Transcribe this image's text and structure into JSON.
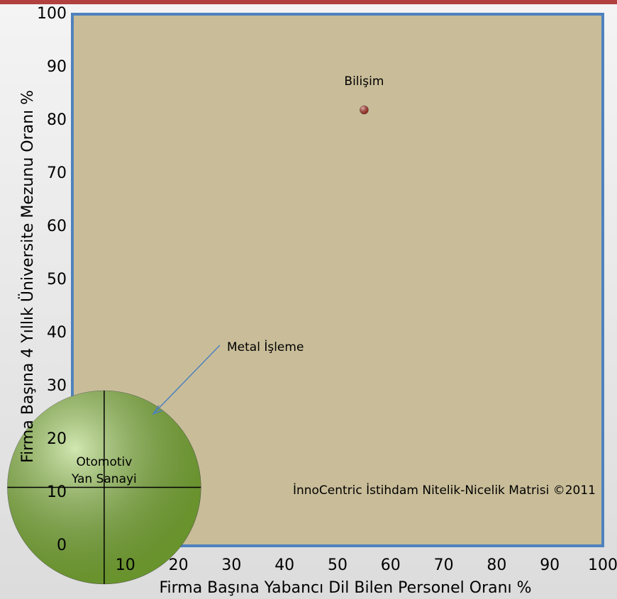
{
  "chart_data": {
    "type": "bubble",
    "x_label": "Firma Başına Yabancı Dil Bilen Personel Oranı %",
    "y_label": "Firma Başına 4 Yıllık Üniversite Mezunu Oranı %",
    "annotation": "İnnoCentric İstihdam Nitelik-Nicelik Matrisi ©2011",
    "xlim": [
      0,
      100
    ],
    "xticks": [
      10,
      20,
      30,
      40,
      50,
      60,
      70,
      80,
      90,
      100
    ],
    "ylim": [
      0,
      100
    ],
    "yticks": [
      0,
      10,
      20,
      30,
      40,
      50,
      60,
      70,
      80,
      90,
      100
    ],
    "plot_color": "#c9bd99",
    "border_color": "#4f81bd",
    "series": [
      {
        "name": "Bilişim",
        "color": "#c0392b",
        "x": [
          55
        ],
        "values": [
          82
        ],
        "sizes": [
          1
        ]
      },
      {
        "name": "Metal İşleme",
        "color": "#3a78c8",
        "x": [
          13
        ],
        "values": [
          22
        ],
        "sizes": [
          13
        ]
      },
      {
        "name": "Otomotiv Yan Sanayi",
        "color": "#8cc43c",
        "x": [
          6
        ],
        "values": [
          11
        ],
        "sizes": [
          500
        ]
      }
    ]
  }
}
